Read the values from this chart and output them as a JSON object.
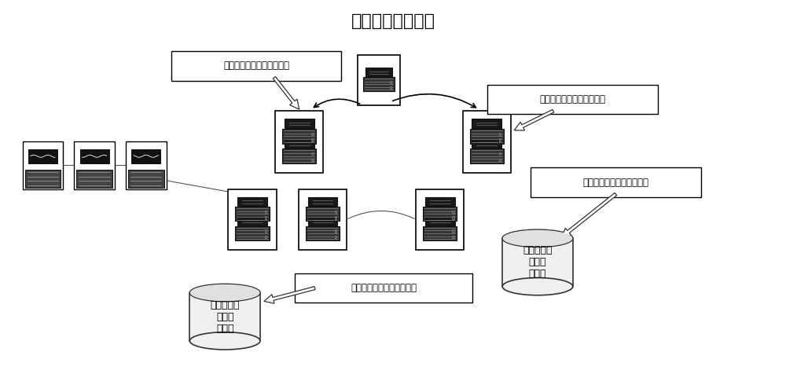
{
  "title": "分散计算节点上线",
  "title_fontsize": 16,
  "background_color": "#ffffff",
  "label_discovery_top_left": "分散计算节点发现协议报文",
  "label_discovery_top_right": "分散计算节点发现协议报文",
  "label_discovery_mid_right": "分散计算节点发现协议报文",
  "label_discovery_bottom": "分散计算节点发现协议报文",
  "label_db_left_text": "分散计算节\n点信息\n动态表",
  "label_db_right_text": "分散计算节\n点信息\n动态表",
  "arrow_color": "#000000",
  "text_fontsize": 9
}
